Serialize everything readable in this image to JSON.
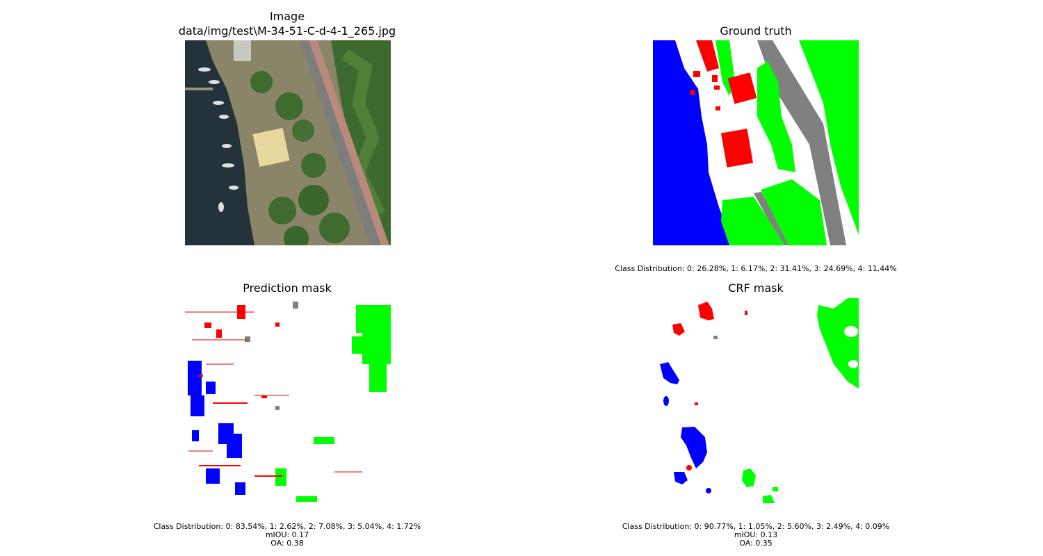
{
  "panels": {
    "image": {
      "title_line1": "Image",
      "title_line2": "data/img/test\\M-34-51-C-d-4-1_265.jpg"
    },
    "ground_truth": {
      "title": "Ground truth",
      "class_distribution": "Class Distribution: 0: 26.28%, 1: 6.17%, 2: 31.41%, 3: 24.69%, 4: 11.44%"
    },
    "prediction": {
      "title": "Prediction mask",
      "class_distribution": "Class Distribution: 0: 83.54%, 1: 2.62%, 2: 7.08%, 3: 5.04%, 4: 1.72%",
      "miou": "mIOU: 0.17",
      "oa": "OA: 0.38"
    },
    "crf": {
      "title": "CRF mask",
      "class_distribution": "Class Distribution: 0: 90.77%, 1: 1.05%, 2: 5.60%, 3: 2.49%, 4: 0.09%",
      "miou": "mIOU: 0.13",
      "oa": "OA: 0.35"
    }
  },
  "class_colors": {
    "background": "#ffffff",
    "building": "#ff0000",
    "woodland": "#00ff00",
    "water": "#0000ff",
    "road": "#808080"
  }
}
